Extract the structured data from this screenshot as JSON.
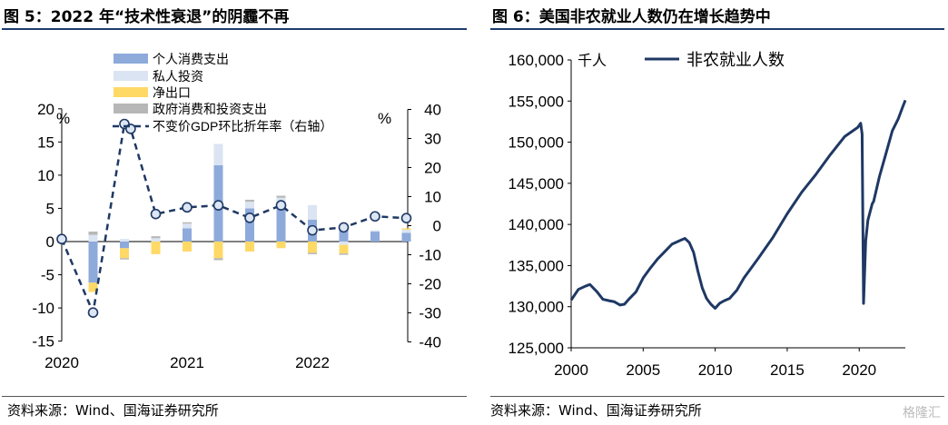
{
  "titles": {
    "left": "图 5：2022 年“技术性衰退”的阴霾不再",
    "right": "图 6：美国非农就业人数仍在增长趋势中"
  },
  "sources": {
    "left": "资料来源：Wind、国海证券研究所",
    "right": "资料来源：Wind、国海证券研究所"
  },
  "watermark": "格隆汇",
  "colors": {
    "consumption": "#8eaadb",
    "investment": "#dbe4f2",
    "net_exports": "#ffd966",
    "government": "#b7b7b7",
    "gdp_line": "#1f3864",
    "payroll_line": "#1f3864"
  },
  "chart_data": [
    {
      "type": "bar",
      "stacked": true,
      "left_axis_unit": "%",
      "right_axis_unit": "%",
      "ylim_left": [
        -15,
        20
      ],
      "ylim_right": [
        -40,
        40
      ],
      "yticks_left": [
        -15,
        -10,
        -5,
        0,
        5,
        10,
        15,
        20
      ],
      "yticks_right": [
        -40,
        -30,
        -20,
        -10,
        0,
        10,
        20,
        30,
        40
      ],
      "x_tick_labels": [
        "2020",
        "2021",
        "2022"
      ],
      "legend_position": "top-center",
      "categories": [
        "2020Q1",
        "2020Q2",
        "2020Q3",
        "2020Q4",
        "2021Q1",
        "2021Q2",
        "2021Q3",
        "2021Q4",
        "2022Q1",
        "2022Q2",
        "2022Q3",
        "2022Q4"
      ],
      "series": [
        {
          "name": "个人消费支出",
          "color_key": "consumption",
          "axis": "left",
          "values": [
            -0.2,
            -6.2,
            -1.0,
            0.0,
            2.0,
            11.5,
            5.0,
            6.0,
            3.3,
            1.8,
            1.5,
            1.3
          ]
        },
        {
          "name": "私人投资",
          "color_key": "investment",
          "axis": "left",
          "values": [
            0.0,
            1.0,
            0.4,
            0.5,
            0.7,
            3.2,
            1.0,
            0.6,
            2.2,
            -0.5,
            0.2,
            0.5
          ]
        },
        {
          "name": "净出口",
          "color_key": "net_exports",
          "axis": "left",
          "values": [
            0.0,
            -1.4,
            -1.5,
            -1.9,
            -1.5,
            -2.5,
            -1.5,
            -1.0,
            -1.7,
            -1.3,
            0.0,
            0.2
          ]
        },
        {
          "name": "政府消费和投资支出",
          "color_key": "government",
          "axis": "left",
          "values": [
            0.0,
            0.5,
            -0.2,
            0.3,
            0.2,
            -0.3,
            0.3,
            0.3,
            -0.2,
            -0.2,
            0.0,
            0.0
          ]
        },
        {
          "name": "不变价GDP环比折年率（右轴）",
          "color_key": "gdp_line",
          "axis": "right",
          "kind": "line-dashed",
          "x": [
            0.0,
            1.0,
            2.0,
            2.2,
            3.0,
            4.0,
            5.0,
            6.0,
            7.0,
            8.0,
            9.0,
            10.0,
            11.0
          ],
          "values": [
            -4.6,
            -29.9,
            35.0,
            33.3,
            4.0,
            6.3,
            7.0,
            2.7,
            7.0,
            -1.6,
            -0.6,
            3.2,
            2.6
          ]
        }
      ]
    },
    {
      "type": "line",
      "y_axis_unit": "千人",
      "ylim": [
        125000,
        160000
      ],
      "yticks": [
        "125,000",
        "130,000",
        "135,000",
        "140,000",
        "145,000",
        "150,000",
        "155,000",
        "160,000"
      ],
      "xlim": [
        2000,
        2023.2
      ],
      "xticks": [
        "2000",
        "2005",
        "2010",
        "2015",
        "2020"
      ],
      "legend_position": "top-center",
      "series": [
        {
          "name": "非农就业人数",
          "color_key": "payroll_line",
          "x": [
            2000.0,
            2000.5,
            2001.0,
            2001.3,
            2001.8,
            2002.2,
            2002.7,
            2003.0,
            2003.4,
            2003.7,
            2004.0,
            2004.5,
            2005.0,
            2005.5,
            2006.0,
            2006.5,
            2007.0,
            2007.5,
            2007.9,
            2008.2,
            2008.5,
            2008.8,
            2009.1,
            2009.4,
            2009.7,
            2010.0,
            2010.3,
            2010.6,
            2011.0,
            2011.5,
            2012.0,
            2013.0,
            2014.0,
            2015.0,
            2016.0,
            2017.0,
            2018.0,
            2019.0,
            2019.9,
            2020.1,
            2020.2,
            2020.3,
            2020.45,
            2020.6,
            2020.9,
            2021.0,
            2021.4,
            2021.9,
            2022.3,
            2022.7,
            2023.0,
            2023.2
          ],
          "values": [
            130800,
            132100,
            132500,
            132700,
            131800,
            130900,
            130700,
            130600,
            130200,
            130300,
            130900,
            131800,
            133500,
            134700,
            135800,
            136700,
            137600,
            138000,
            138300,
            137800,
            136600,
            134300,
            132300,
            131000,
            130300,
            129800,
            130400,
            130700,
            131000,
            132000,
            133500,
            135900,
            138400,
            141300,
            143900,
            146100,
            148500,
            150700,
            151800,
            152300,
            151000,
            130400,
            138000,
            140500,
            142500,
            142800,
            145800,
            148900,
            151400,
            152800,
            154200,
            155100
          ]
        }
      ]
    }
  ]
}
